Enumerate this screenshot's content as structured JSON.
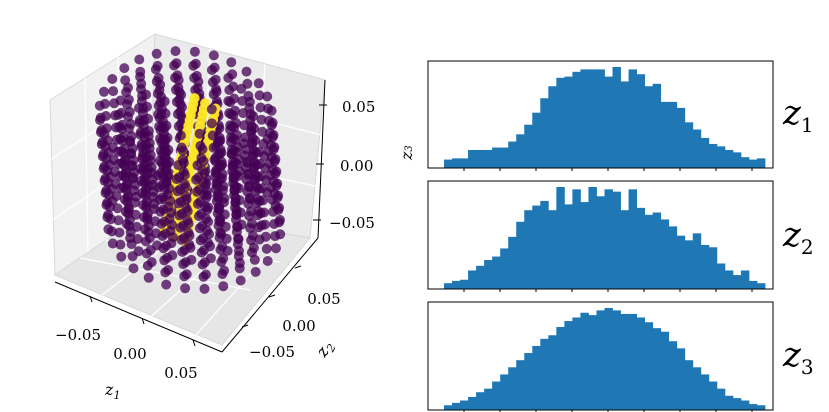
{
  "chart_data": [
    {
      "type": "scatter",
      "projection": "3d",
      "axes": {
        "x": {
          "label_base": "z",
          "label_sub": "1",
          "ticks": [
            "−0.05",
            "0.00",
            "0.05"
          ],
          "range": [
            -0.08,
            0.08
          ]
        },
        "y": {
          "label_base": "z",
          "label_sub": "2",
          "ticks": [
            "−0.05",
            "0.00",
            "0.05"
          ],
          "range": [
            -0.08,
            0.08
          ]
        },
        "z": {
          "label_base": "z",
          "label_sub": "3",
          "ticks": [
            "0.05",
            "0.00",
            "−0.05"
          ],
          "range": [
            -0.08,
            0.08
          ]
        }
      },
      "series": [
        {
          "color": "#440154",
          "shape": "cylinder",
          "center": [
            0.0,
            0.0
          ],
          "radius": 0.07,
          "height": [
            -0.07,
            0.07
          ]
        },
        {
          "color": "#fde725",
          "shape": "diagonal band",
          "x": [
            -0.01,
            0.01
          ],
          "y": [
            -0.02,
            0.02
          ],
          "z": [
            -0.07,
            0.07
          ]
        }
      ],
      "grid": true
    },
    {
      "type": "bar",
      "subtype": "histogram",
      "label_base": "z",
      "label_sub": "1",
      "color": "#1f77b4",
      "values": [
        7,
        8,
        8,
        15,
        15,
        15,
        17,
        17,
        22,
        28,
        36,
        46,
        58,
        68,
        75,
        76,
        80,
        82,
        82,
        82,
        76,
        84,
        72,
        82,
        78,
        68,
        70,
        55,
        55,
        50,
        38,
        32,
        25,
        20,
        18,
        15,
        13,
        9,
        7,
        8
      ]
    },
    {
      "type": "bar",
      "subtype": "histogram",
      "label_base": "z",
      "label_sub": "2",
      "color": "#1f77b4",
      "values": [
        5,
        7,
        8,
        16,
        20,
        25,
        28,
        35,
        45,
        58,
        68,
        72,
        76,
        68,
        88,
        73,
        86,
        75,
        88,
        80,
        86,
        84,
        68,
        86,
        70,
        64,
        66,
        60,
        54,
        46,
        42,
        48,
        38,
        36,
        22,
        16,
        12,
        16,
        7,
        5
      ]
    },
    {
      "type": "bar",
      "subtype": "histogram",
      "label_base": "z",
      "label_sub": "3",
      "color": "#1f77b4",
      "values": [
        4,
        6,
        8,
        11,
        15,
        18,
        24,
        30,
        36,
        42,
        48,
        54,
        60,
        63,
        70,
        75,
        78,
        82,
        80,
        84,
        86,
        84,
        81,
        81,
        78,
        74,
        69,
        66,
        58,
        52,
        42,
        36,
        30,
        24,
        18,
        12,
        10,
        8,
        5,
        4
      ]
    }
  ]
}
